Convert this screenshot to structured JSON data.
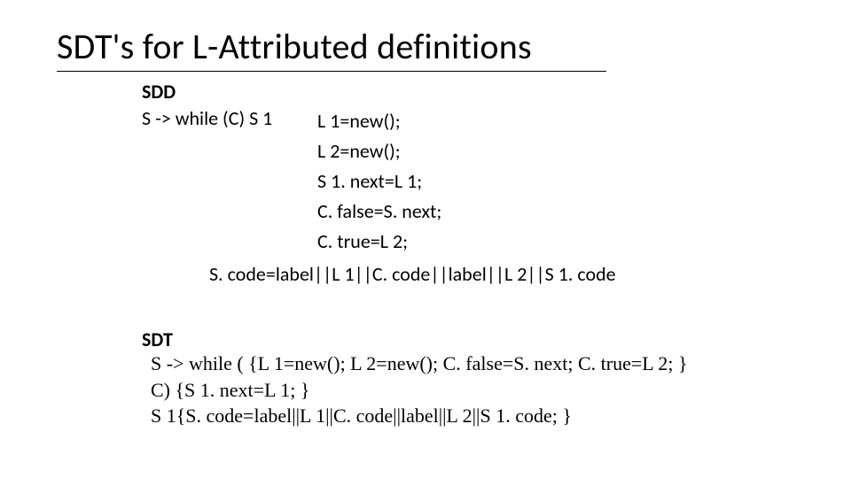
{
  "title": "SDT's for L-Attributed definitions",
  "sdd": {
    "label": "SDD",
    "production": "S -> while (C) S 1",
    "rules": [
      "L 1=new();",
      "L 2=new();",
      "S 1. next=L 1;",
      "C. false=S. next;",
      "C. true=L 2;"
    ],
    "longRule": "S. code=label||L 1||C. code||label||L 2||S 1. code"
  },
  "sdt": {
    "label": "SDT",
    "lines": [
      "S -> while ( {L 1=new(); L 2=new(); C. false=S. next; C. true=L 2; }",
      "C) {S 1. next=L 1; }",
      "S 1{S. code=label||L 1||C. code||label||L 2||S 1. code; }"
    ]
  },
  "style": {
    "background": "#ffffff",
    "textColor": "#000000",
    "titleFontSize": 40,
    "bodyFontSize": 22
  }
}
